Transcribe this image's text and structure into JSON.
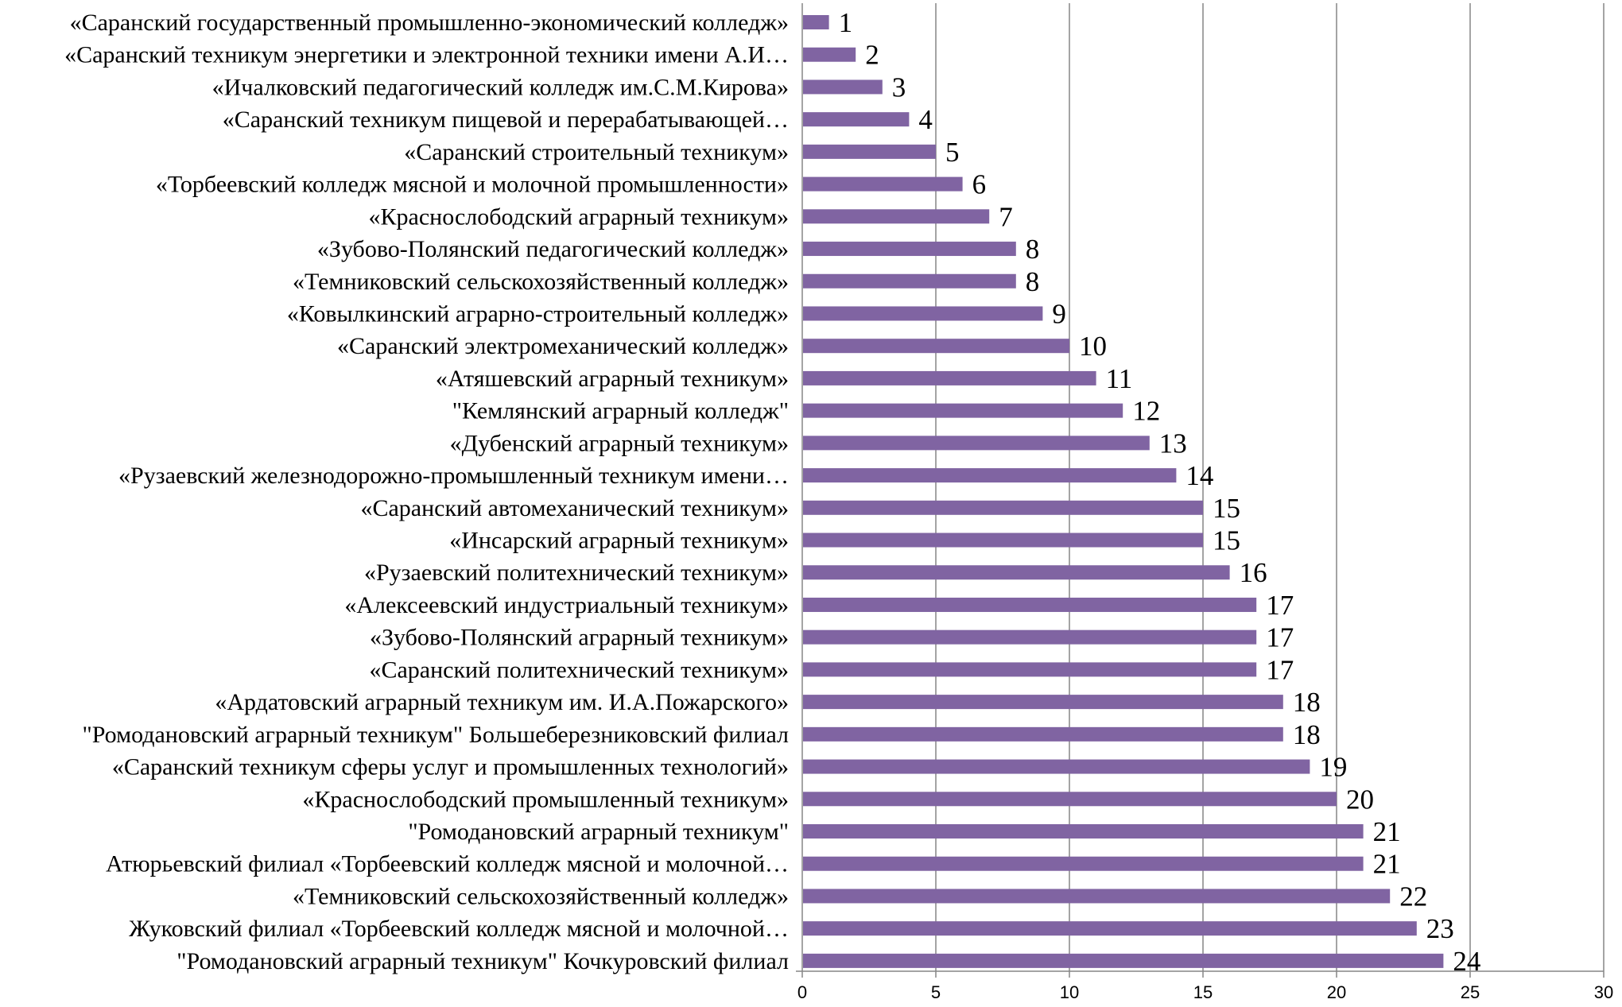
{
  "chart_data": {
    "type": "bar",
    "orientation": "horizontal",
    "categories": [
      "«Саранский государственный промышленно-экономический колледж»",
      "«Саранский техникум энергетики и электронной техники имени А.И…",
      "«Ичалковский педагогический колледж им.С.М.Кирова»",
      "«Саранский техникум пищевой и перерабатывающей…",
      "«Саранский строительный техникум»",
      "«Торбеевский колледж мясной и молочной промышленности»",
      "«Краснослободский аграрный техникум»",
      "«Зубово-Полянский педагогический колледж»",
      "«Темниковский сельскохозяйственный колледж»",
      "«Ковылкинский аграрно-строительный колледж»",
      "«Саранский электромеханический колледж»",
      "«Атяшевский аграрный техникум»",
      "\"Кемлянский аграрный колледж\"",
      "«Дубенский аграрный техникум»",
      "«Рузаевский железнодорожно-промышленный техникум имени…",
      "«Саранский автомеханический техникум»",
      "«Инсарский аграрный техникум»",
      "«Рузаевский политехнический техникум»",
      "«Алексеевский индустриальный техникум»",
      "«Зубово-Полянский аграрный техникум»",
      "«Саранский политехнический техникум»",
      "«Ардатовский аграрный техникум им. И.А.Пожарского»",
      "\"Ромодановский аграрный техникум\" Большеберезниковский филиал",
      "«Саранский техникум сферы услуг и промышленных технологий»",
      "«Краснослободский промышленный техникум»",
      "\"Ромодановский аграрный техникум\"",
      "Атюрьевский филиал  «Торбеевский колледж мясной и молочной…",
      "«Темниковский сельскохозяйственный колледж»",
      "Жуковский филиал «Торбеевский колледж мясной и молочной…",
      "\"Ромодановский аграрный техникум\" Кочкуровский филиал"
    ],
    "values": [
      1,
      2,
      3,
      4,
      5,
      6,
      7,
      8,
      8,
      9,
      10,
      11,
      12,
      13,
      14,
      15,
      15,
      16,
      17,
      17,
      17,
      18,
      18,
      19,
      20,
      21,
      21,
      22,
      23,
      24
    ],
    "xlim": [
      0,
      30
    ],
    "xticks": [
      "0",
      "5",
      "10",
      "15",
      "20",
      "25",
      "30"
    ],
    "tick_step": 5,
    "grid": true,
    "bar_color": "#8064A2",
    "grid_color": "#868686"
  }
}
